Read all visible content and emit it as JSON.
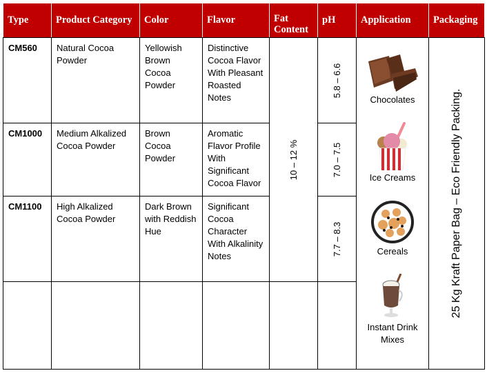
{
  "headers": [
    "Type",
    "Product Category",
    "Color",
    "Flavor",
    "Fat Content",
    "pH",
    "Application",
    "Packaging"
  ],
  "rows": [
    {
      "type": "CM560",
      "category": "Natural Cocoa Powder",
      "color": "Yellowish Brown Cocoa Powder",
      "flavor": "Distinctive Cocoa Flavor With Pleasant Roasted Notes",
      "ph": "5.8 – 6.6"
    },
    {
      "type": "CM1000",
      "category": "Medium Alkalized Cocoa Powder",
      "color": "Brown Cocoa Powder",
      "flavor": "Aromatic Flavor Profile With Significant Cocoa Flavor",
      "ph": "7.0 – 7.5"
    },
    {
      "type": "CM1100",
      "category": "High Alkalized Cocoa Powder",
      "color": "Dark Brown with Reddish Hue",
      "flavor": "Significant Cocoa Character With Alkalinity Notes",
      "ph": "7.7 – 8.3"
    }
  ],
  "fat_content": "10 – 12 %",
  "applications": [
    {
      "label": "Chocolates",
      "icon": "chocolate-icon"
    },
    {
      "label": "Ice Creams",
      "icon": "ice-cream-icon"
    },
    {
      "label": "Cereals",
      "icon": "cereal-bowl-icon"
    },
    {
      "label": "Instant Drink Mixes",
      "icon": "hot-chocolate-icon"
    }
  ],
  "packaging": "25 Kg Kraft Paper Bag – Eco Friendly Packing.",
  "colors": {
    "header_bg": "#c00000",
    "header_text": "#ffffff"
  }
}
